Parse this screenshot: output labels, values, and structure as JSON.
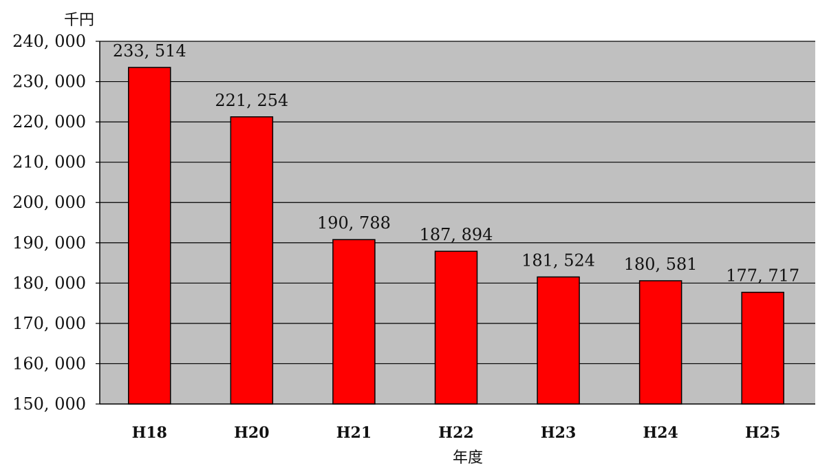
{
  "chart_data": {
    "type": "bar",
    "title": "",
    "xlabel": "年度",
    "ylabel": "千円",
    "categories": [
      "H18",
      "H20",
      "H21",
      "H22",
      "H23",
      "H24",
      "H25"
    ],
    "values": [
      233514,
      221254,
      190788,
      187894,
      181524,
      180581,
      177717
    ],
    "data_labels": [
      "233, 514",
      "221, 254",
      "190, 788",
      "187, 894",
      "181, 524",
      "180, 581",
      "177, 717"
    ],
    "ylim": [
      150000,
      240000
    ],
    "yticks": [
      150000,
      160000,
      170000,
      180000,
      190000,
      200000,
      210000,
      220000,
      230000,
      240000
    ],
    "ytick_labels": [
      "150, 000",
      "160, 000",
      "170, 000",
      "180, 000",
      "190, 000",
      "200, 000",
      "210, 000",
      "220, 000",
      "230, 000",
      "240, 000"
    ],
    "grid": true,
    "legend": "none",
    "colors": {
      "bar": "#ff0000",
      "bar_edge": "#000000",
      "plot_bg": "#c0c0c0",
      "grid": "#000000"
    }
  }
}
